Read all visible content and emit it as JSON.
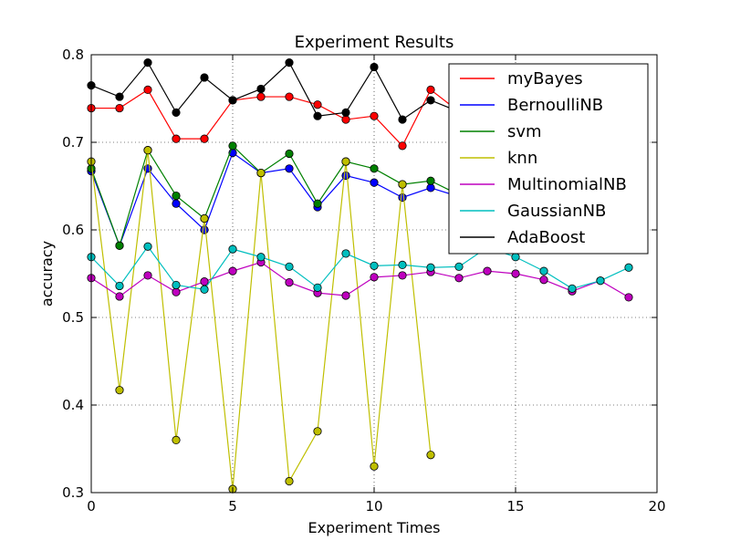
{
  "chart_data": {
    "type": "line",
    "title": "Experiment Results",
    "xlabel": "Experiment Times",
    "ylabel": "accuracy",
    "xlim": [
      0,
      20
    ],
    "ylim": [
      0.3,
      0.8
    ],
    "xticks": [
      0,
      5,
      10,
      15,
      20
    ],
    "xtick_labels": [
      "0",
      "5",
      "10",
      "15",
      "20"
    ],
    "yticks": [
      0.3,
      0.4,
      0.5,
      0.6,
      0.7,
      0.8
    ],
    "ytick_labels": [
      "0.3",
      "0.4",
      "0.5",
      "0.6",
      "0.7",
      "0.8"
    ],
    "grid": true,
    "grid_style": "dotted",
    "legend_position": "top-right",
    "series": [
      {
        "name": "myBayes",
        "color": "#ff0000",
        "x": [
          0,
          1,
          2,
          3,
          4,
          5,
          6,
          7,
          8,
          9,
          10,
          11,
          12,
          13
        ],
        "y": [
          0.739,
          0.739,
          0.76,
          0.704,
          0.704,
          0.748,
          0.752,
          0.752,
          0.743,
          0.726,
          0.73,
          0.696,
          0.76,
          0.735
        ]
      },
      {
        "name": "BernoulliNB",
        "color": "#0000ff",
        "x": [
          0,
          1,
          2,
          3,
          4,
          5,
          6,
          7,
          8,
          9,
          10,
          11,
          12,
          13
        ],
        "y": [
          0.667,
          0.582,
          0.67,
          0.63,
          0.6,
          0.688,
          0.665,
          0.67,
          0.626,
          0.662,
          0.654,
          0.637,
          0.648,
          0.638
        ]
      },
      {
        "name": "svm",
        "color": "#008000",
        "x": [
          0,
          1,
          2,
          3,
          4,
          5,
          6,
          7,
          8,
          9,
          10,
          11,
          12,
          13
        ],
        "y": [
          0.67,
          0.582,
          0.691,
          0.639,
          0.613,
          0.696,
          0.665,
          0.687,
          0.63,
          0.678,
          0.67,
          0.652,
          0.656,
          0.64
        ]
      },
      {
        "name": "knn",
        "color": "#bfbf00",
        "x": [
          0,
          1,
          2,
          3,
          4,
          5,
          6,
          7,
          8,
          9,
          10,
          11,
          12
        ],
        "y": [
          0.678,
          0.417,
          0.691,
          0.36,
          0.613,
          0.304,
          0.665,
          0.313,
          0.37,
          0.678,
          0.33,
          0.652,
          0.343
        ]
      },
      {
        "name": "MultinomialNB",
        "color": "#bf00bf",
        "x": [
          0,
          1,
          2,
          3,
          4,
          5,
          6,
          7,
          8,
          9,
          10,
          11,
          12,
          13,
          14,
          15,
          16,
          17,
          18,
          19
        ],
        "y": [
          0.545,
          0.524,
          0.548,
          0.529,
          0.541,
          0.553,
          0.563,
          0.54,
          0.528,
          0.525,
          0.546,
          0.548,
          0.552,
          0.545,
          0.553,
          0.55,
          0.543,
          0.53,
          0.542,
          0.523
        ]
      },
      {
        "name": "GaussianNB",
        "color": "#00bfbf",
        "x": [
          0,
          1,
          2,
          3,
          4,
          5,
          6,
          7,
          8,
          9,
          10,
          11,
          12,
          13,
          14,
          15,
          16,
          17,
          18,
          19
        ],
        "y": [
          0.569,
          0.536,
          0.581,
          0.537,
          0.532,
          0.578,
          0.569,
          0.558,
          0.534,
          0.573,
          0.559,
          0.56,
          0.557,
          0.558,
          0.58,
          0.569,
          0.553,
          0.533,
          0.542,
          0.557
        ]
      },
      {
        "name": "AdaBoost",
        "color": "#000000",
        "x": [
          0,
          1,
          2,
          3,
          4,
          5,
          6,
          7,
          8,
          9,
          10,
          11,
          12,
          13
        ],
        "y": [
          0.765,
          0.752,
          0.791,
          0.734,
          0.774,
          0.748,
          0.761,
          0.791,
          0.73,
          0.734,
          0.786,
          0.726,
          0.748,
          0.735
        ]
      }
    ]
  }
}
